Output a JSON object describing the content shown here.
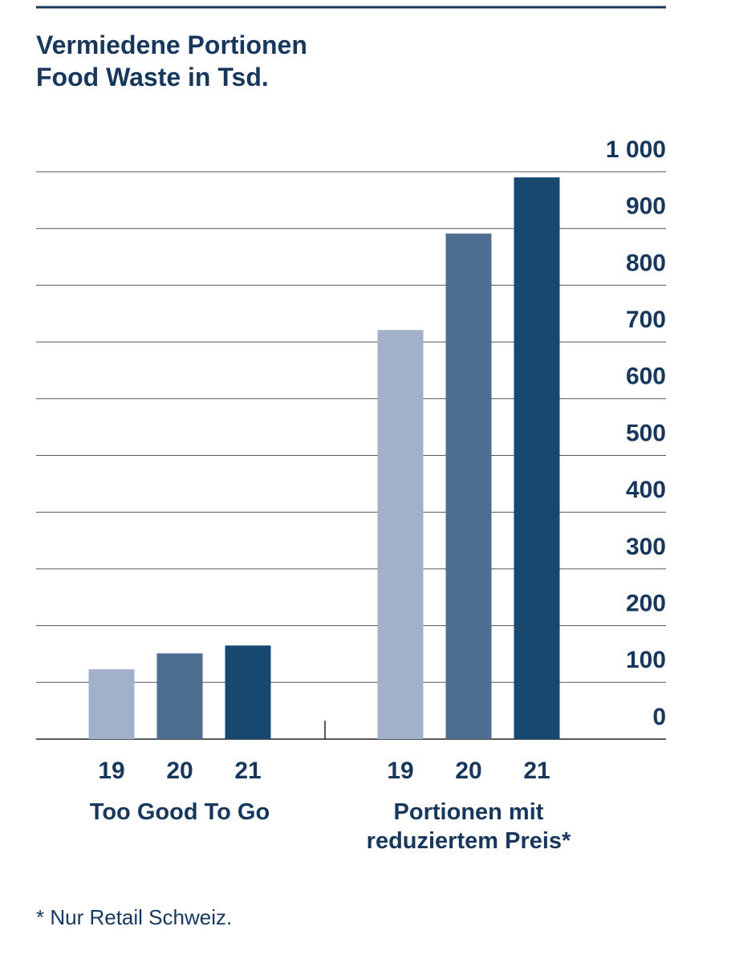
{
  "chart_data": {
    "type": "bar",
    "title": "Vermiedene Portionen\nFood Waste in Tsd.",
    "categories": [
      "Too Good To Go",
      "Portionen mit\nreduziertem Preis*"
    ],
    "series": [
      {
        "name": "19",
        "color": "#a3b0c9",
        "values": [
          123,
          721
        ]
      },
      {
        "name": "20",
        "color": "#4d6d91",
        "values": [
          151,
          891
        ]
      },
      {
        "name": "21",
        "color": "#17486f",
        "values": [
          165,
          990
        ]
      }
    ],
    "ylim": [
      0,
      1000
    ],
    "yticks": [
      0,
      100,
      200,
      300,
      400,
      500,
      600,
      700,
      800,
      900,
      {
        "value": 1000,
        "label": "1 000"
      }
    ],
    "grid": true,
    "footnote": "* Nur Retail Schweiz."
  }
}
